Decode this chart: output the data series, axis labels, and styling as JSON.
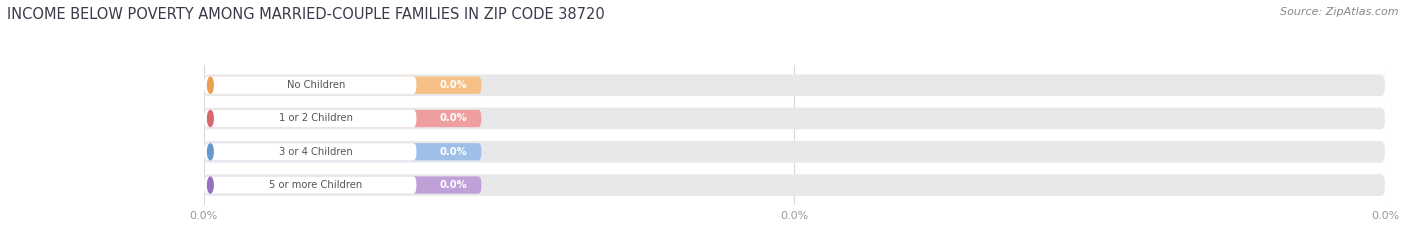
{
  "title": "INCOME BELOW POVERTY AMONG MARRIED-COUPLE FAMILIES IN ZIP CODE 38720",
  "source": "Source: ZipAtlas.com",
  "categories": [
    "No Children",
    "1 or 2 Children",
    "3 or 4 Children",
    "5 or more Children"
  ],
  "values": [
    0.0,
    0.0,
    0.0,
    0.0
  ],
  "bar_colors": [
    "#f5bf85",
    "#ef9ea0",
    "#a0bfe8",
    "#bfa0d8"
  ],
  "label_circle_colors": [
    "#e8a050",
    "#d86870",
    "#6898d0",
    "#9870c0"
  ],
  "bar_track_color": "#e8e8ea",
  "title_fontsize": 10.5,
  "source_fontsize": 8,
  "background_color": "#ffffff",
  "label_text_color": "#555555",
  "value_text_color": "#ffffff",
  "grid_color": "#d8d8d8",
  "tick_label_color": "#999999"
}
